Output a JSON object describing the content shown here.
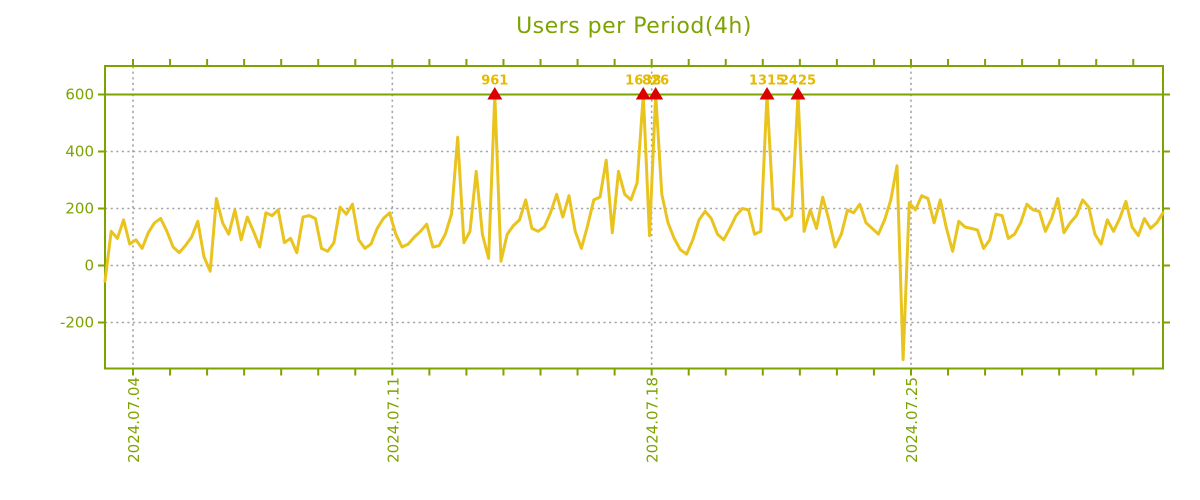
{
  "title": "Users per Period(4h)",
  "colors": {
    "axis_green": "#7da300",
    "line_gold": "#e9c31e",
    "peak_label_gold": "#e4ba00",
    "marker_red": "#dd0000",
    "grid_gray": "#a5a5a5",
    "background": "#ffffff"
  },
  "chart_data": {
    "type": "line",
    "title": "Users per Period(4h)",
    "period_per_point": "4h",
    "grid": true,
    "legend_position": "none",
    "ylim_visible": [
      -361,
      700
    ],
    "threshold_line_value": 600,
    "clip_value": 600,
    "yticks": [
      600,
      400,
      200,
      0,
      -200
    ],
    "xticks": [
      "2024.07.04",
      "2024.07.11",
      "2024.07.18",
      "2024.07.25"
    ],
    "clipped_peak_labels": [
      "961",
      "1638",
      "826",
      "1315",
      "2425"
    ],
    "values": [
      -55,
      120,
      95,
      160,
      75,
      90,
      60,
      115,
      150,
      165,
      120,
      65,
      45,
      70,
      100,
      155,
      30,
      -20,
      235,
      150,
      110,
      195,
      90,
      170,
      120,
      65,
      185,
      175,
      195,
      80,
      95,
      45,
      170,
      175,
      165,
      60,
      50,
      80,
      205,
      180,
      215,
      90,
      60,
      75,
      130,
      165,
      185,
      110,
      65,
      75,
      100,
      120,
      145,
      65,
      70,
      110,
      180,
      450,
      80,
      120,
      330,
      110,
      25,
      961,
      15,
      110,
      140,
      160,
      230,
      130,
      120,
      135,
      185,
      250,
      170,
      245,
      120,
      60,
      140,
      230,
      240,
      370,
      115,
      330,
      250,
      230,
      290,
      1638,
      105,
      826,
      250,
      150,
      95,
      55,
      40,
      90,
      160,
      190,
      165,
      110,
      90,
      130,
      175,
      200,
      195,
      110,
      120,
      1315,
      200,
      195,
      160,
      175,
      2425,
      120,
      195,
      130,
      240,
      160,
      65,
      110,
      195,
      185,
      215,
      150,
      130,
      110,
      160,
      230,
      350,
      -330,
      220,
      195,
      245,
      235,
      150,
      230,
      130,
      50,
      155,
      135,
      130,
      125,
      60,
      90,
      180,
      175,
      95,
      110,
      150,
      215,
      195,
      190,
      120,
      165,
      235,
      115,
      150,
      175,
      230,
      205,
      110,
      75,
      160,
      120,
      165,
      225,
      135,
      105,
      165,
      130,
      150,
      185
    ]
  }
}
